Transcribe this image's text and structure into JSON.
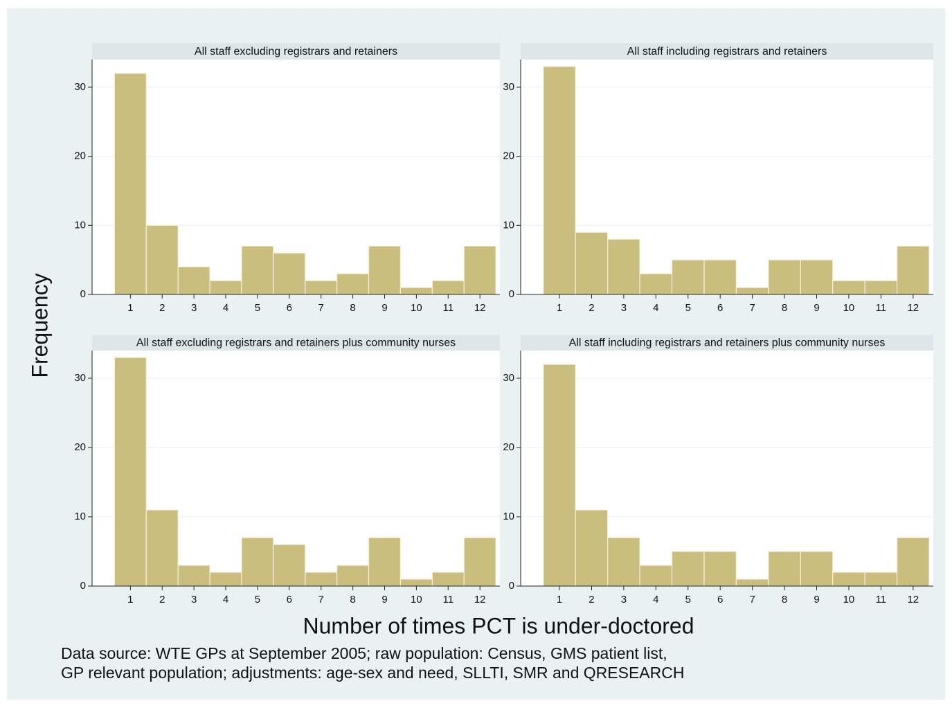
{
  "chart_data": [
    {
      "type": "bar",
      "title": "All staff excluding registrars and retainers",
      "categories": [
        "1",
        "2",
        "3",
        "4",
        "5",
        "6",
        "7",
        "8",
        "9",
        "10",
        "11",
        "12"
      ],
      "values": [
        32,
        10,
        4,
        2,
        7,
        6,
        2,
        3,
        7,
        1,
        2,
        7
      ],
      "color": "#c9be7e",
      "ylim": [
        0,
        34
      ],
      "yticks": [
        0,
        10,
        20,
        30
      ],
      "grid": true
    },
    {
      "type": "bar",
      "title": "All staff including registrars and retainers",
      "categories": [
        "1",
        "2",
        "3",
        "4",
        "5",
        "6",
        "7",
        "8",
        "9",
        "10",
        "11",
        "12"
      ],
      "values": [
        33,
        9,
        8,
        3,
        5,
        5,
        1,
        5,
        5,
        2,
        2,
        7
      ],
      "color": "#c9be7e",
      "ylim": [
        0,
        34
      ],
      "yticks": [
        0,
        10,
        20,
        30
      ],
      "grid": true
    },
    {
      "type": "bar",
      "title": "All staff excluding registrars and retainers plus community nurses",
      "categories": [
        "1",
        "2",
        "3",
        "4",
        "5",
        "6",
        "7",
        "8",
        "9",
        "10",
        "11",
        "12"
      ],
      "values": [
        33,
        11,
        3,
        2,
        7,
        6,
        2,
        3,
        7,
        1,
        2,
        7
      ],
      "color": "#c9be7e",
      "ylim": [
        0,
        34
      ],
      "yticks": [
        0,
        10,
        20,
        30
      ],
      "grid": true
    },
    {
      "type": "bar",
      "title": "All staff including registrars and retainers plus community nurses",
      "categories": [
        "1",
        "2",
        "3",
        "4",
        "5",
        "6",
        "7",
        "8",
        "9",
        "10",
        "11",
        "12"
      ],
      "values": [
        32,
        11,
        7,
        3,
        5,
        5,
        1,
        5,
        5,
        2,
        2,
        7
      ],
      "color": "#c9be7e",
      "ylim": [
        0,
        34
      ],
      "yticks": [
        0,
        10,
        20,
        30
      ],
      "grid": true
    }
  ],
  "ylabel": "Frequency",
  "xlabel": "Number of times PCT is under-doctored",
  "note": [
    "Data source: WTE GPs at September 2005; raw population: Census, GMS patient list,",
    "GP relevant population; adjustments: age-sex and need, SLLTI, SMR and QRESEARCH"
  ]
}
